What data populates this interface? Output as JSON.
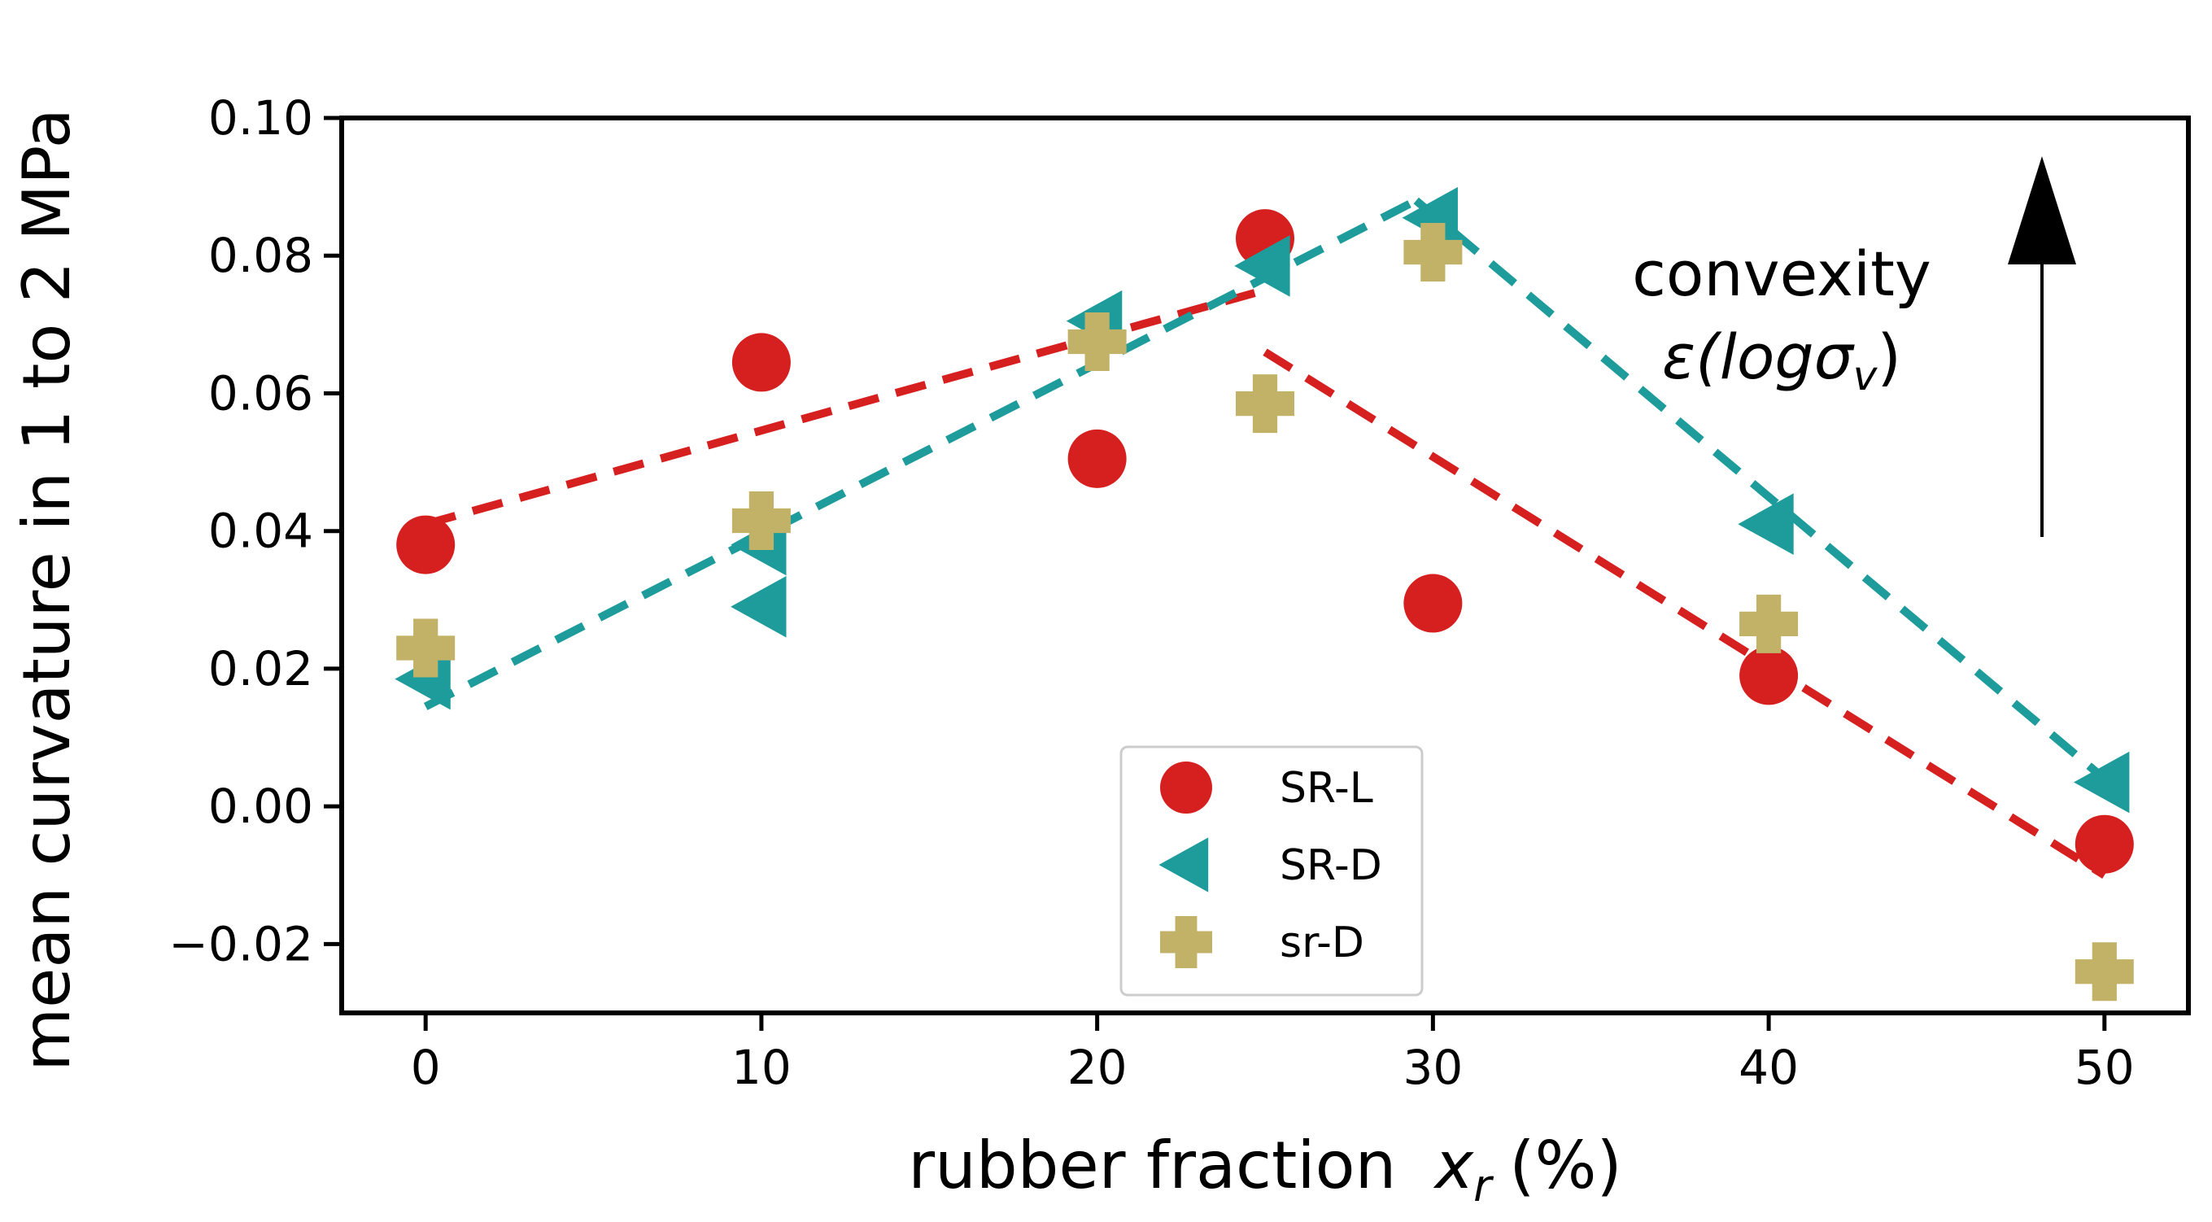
{
  "chart_data": {
    "type": "scatter",
    "title": "",
    "xlabel": "rubber fraction",
    "xlabel_var": "x",
    "xlabel_sub": "r",
    "xlabel_unit": "(%)",
    "ylabel": "mean curvature in 1 to 2 MPa",
    "xlim": [
      -2.5,
      52.5
    ],
    "ylim": [
      -0.03,
      0.1
    ],
    "xticks": [
      0,
      10,
      20,
      30,
      40,
      50
    ],
    "yticks": [
      -0.02,
      0.0,
      0.02,
      0.04,
      0.06,
      0.08,
      0.1
    ],
    "ytick_labels": [
      "−0.02",
      "0.00",
      "0.02",
      "0.04",
      "0.06",
      "0.08",
      "0.10"
    ],
    "legend_position": "lower-center",
    "series": [
      {
        "name": "SR-L",
        "marker": "circle",
        "color": "#d62020",
        "points": [
          [
            0,
            0.038
          ],
          [
            10,
            0.0645
          ],
          [
            20,
            0.0505
          ],
          [
            25,
            0.0825
          ],
          [
            30,
            0.0295
          ],
          [
            40,
            0.019
          ],
          [
            50,
            -0.0055
          ]
        ],
        "fit_lines": [
          [
            [
              0,
              0.041
            ],
            [
              25,
              0.075
            ]
          ],
          [
            [
              25,
              0.066
            ],
            [
              50,
              -0.01
            ]
          ]
        ]
      },
      {
        "name": "SR-D",
        "marker": "triangle-left",
        "color": "#1e9c9c",
        "points": [
          [
            0,
            0.0185
          ],
          [
            10,
            0.038
          ],
          [
            10,
            0.029
          ],
          [
            20,
            0.0705
          ],
          [
            25,
            0.0785
          ],
          [
            30,
            0.0855
          ],
          [
            40,
            0.041
          ],
          [
            50,
            0.0035
          ]
        ],
        "fit_lines": [
          [
            [
              0,
              0.0145
            ],
            [
              29.5,
              0.088
            ]
          ],
          [
            [
              29.5,
              0.088
            ],
            [
              50,
              0.004
            ]
          ]
        ]
      },
      {
        "name": "sr-D",
        "marker": "plus",
        "color": "#c2b268",
        "points": [
          [
            0,
            0.023
          ],
          [
            10,
            0.0415
          ],
          [
            20,
            0.0675
          ],
          [
            25,
            0.0585
          ],
          [
            30,
            0.0805
          ],
          [
            40,
            0.0265
          ],
          [
            50,
            -0.024
          ]
        ],
        "fit_lines": []
      }
    ],
    "annotations": {
      "line1": "convexity",
      "line2": "ε(logσ",
      "line2_sub": "v",
      "line2_end": ")"
    }
  }
}
